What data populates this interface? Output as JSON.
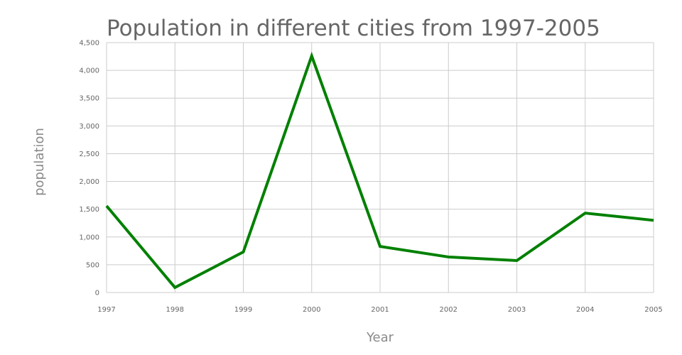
{
  "chart_data": {
    "type": "line",
    "title": "Population in different cities from 1997-2005",
    "xlabel": "Year",
    "ylabel": "population",
    "categories": [
      "1997",
      "1998",
      "1999",
      "2000",
      "2001",
      "2002",
      "2003",
      "2004",
      "2005"
    ],
    "series": [
      {
        "values": [
          1560,
          90,
          730,
          4260,
          830,
          640,
          575,
          1430,
          1300
        ],
        "color": "#008000"
      }
    ],
    "ylim": [
      0,
      4500
    ],
    "yticks": [
      0,
      500,
      1000,
      1500,
      2000,
      2500,
      3000,
      3500,
      4000,
      4500
    ],
    "ytick_labels": [
      "0",
      "500",
      "1,000",
      "1,500",
      "2,000",
      "2,500",
      "3,000",
      "3,500",
      "4,000",
      "4,500"
    ],
    "grid": true,
    "legend": "none"
  }
}
